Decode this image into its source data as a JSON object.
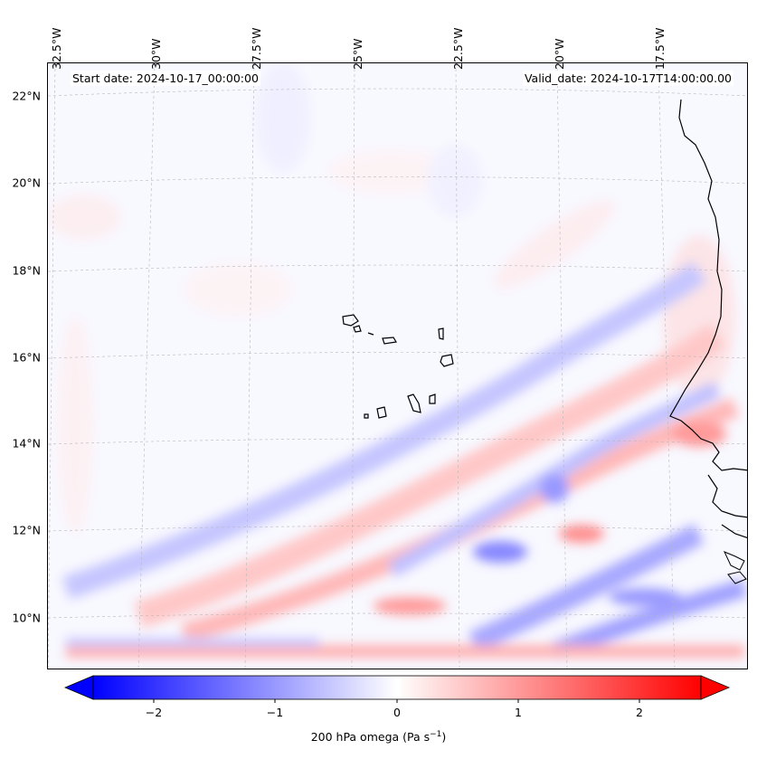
{
  "header": {
    "start_date": "Start date: 2024-10-17_00:00:00",
    "valid_date": "Valid_date: 2024-10-17T14:00:00.00"
  },
  "axes": {
    "lon_labels": [
      "32.5°W",
      "30°W",
      "27.5°W",
      "25°W",
      "22.5°W",
      "20°W",
      "17.5°W"
    ],
    "lat_labels": [
      "22°N",
      "20°N",
      "18°N",
      "16°N",
      "14°N",
      "12°N",
      "10°N"
    ],
    "gridlines": true
  },
  "colorbar": {
    "ticks": [
      "−2",
      "−1",
      "0",
      "1",
      "2"
    ],
    "label_main": "200 hPa omega (Pa s",
    "label_sup": "−1",
    "label_end": ")",
    "range": [
      -2.6,
      2.6
    ],
    "colormap": "bwr",
    "low_color": "#0000ff",
    "mid_color": "#ffffff",
    "high_color": "#ff0000",
    "extend": "both"
  },
  "map": {
    "variable": "200 hPa omega",
    "region": "Cabo Verde and West African coast",
    "land_outline_color": "#000000"
  }
}
